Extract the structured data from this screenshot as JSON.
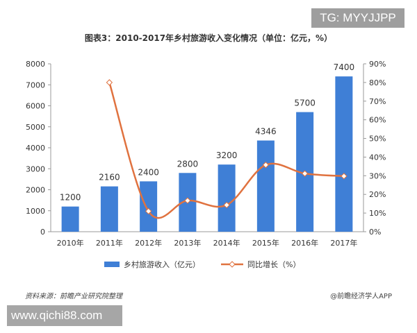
{
  "watermark_top": "TG: MYYJJPP",
  "watermark_bottom": "www.qichi88.com",
  "source": "资料来源：前瞻产业研究院整理",
  "credit": "@前瞻经济学人APP",
  "chart_data": {
    "type": "bar+line",
    "title": "图表3：2010-2017年乡村旅游收入变化情况（单位：亿元，%）",
    "categories": [
      "2010年",
      "2011年",
      "2012年",
      "2013年",
      "2014年",
      "2015年",
      "2016年",
      "2017年"
    ],
    "series": [
      {
        "name": "乡村旅游收入（亿元）",
        "type": "bar",
        "axis": "left",
        "color": "#3f7fd6",
        "values": [
          1200,
          2160,
          2400,
          2800,
          3200,
          4346,
          5700,
          7400
        ],
        "labels": [
          "1200",
          "2160",
          "2400",
          "2800",
          "3200",
          "4346",
          "5700",
          "7400"
        ]
      },
      {
        "name": "同比增长（%）",
        "type": "line",
        "axis": "right",
        "color": "#e0723f",
        "smooth": true,
        "values": [
          null,
          80,
          11,
          16.7,
          14.3,
          35.8,
          31.2,
          29.8
        ]
      }
    ],
    "y_left": {
      "range": [
        0,
        8000
      ],
      "ticks": [
        "0",
        "1000",
        "2000",
        "3000",
        "4000",
        "5000",
        "6000",
        "7000",
        "8000"
      ]
    },
    "y_right": {
      "range": [
        0,
        90
      ],
      "ticks": [
        "0%",
        "10%",
        "20%",
        "30%",
        "40%",
        "50%",
        "60%",
        "70%",
        "80%",
        "90%"
      ]
    },
    "grid": false,
    "legend": "bottom"
  }
}
